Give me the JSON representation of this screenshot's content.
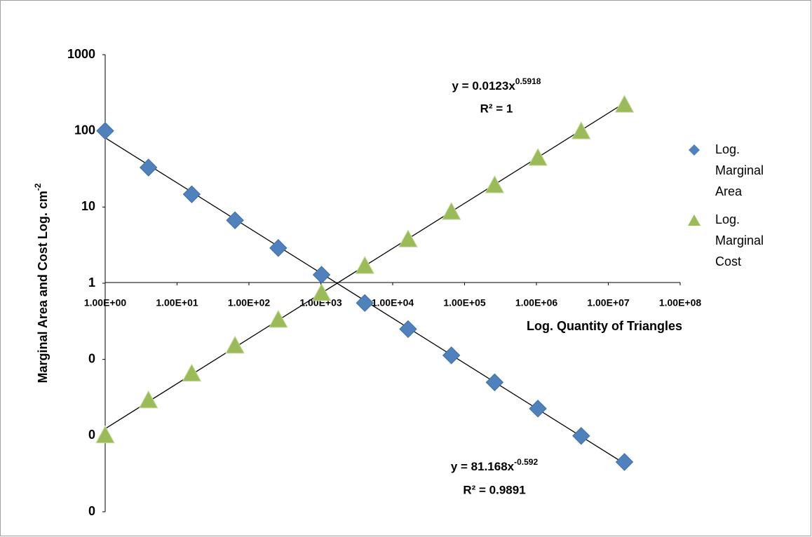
{
  "chart_data": {
    "type": "scatter",
    "xlabel": "Log. Quantity of Triangles",
    "ylabel": "Marginal  Area  and Cost Log. cm",
    "ylabel_sup": "-2",
    "log_x": true,
    "log_y": true,
    "grid": false,
    "legend": "right",
    "xlim": [
      1,
      100000000
    ],
    "xticks": [
      {
        "value": 1,
        "label": "1.00E+00"
      },
      {
        "value": 10,
        "label": "1.00E+01"
      },
      {
        "value": 100,
        "label": "1.00E+02"
      },
      {
        "value": 1000,
        "label": "1.00E+03"
      },
      {
        "value": 10000,
        "label": "1.00E+04"
      },
      {
        "value": 100000,
        "label": "1.00E+05"
      },
      {
        "value": 1000000,
        "label": "1.00E+06"
      },
      {
        "value": 10000000,
        "label": "1.00E+07"
      },
      {
        "value": 100000000,
        "label": "1.00E+08"
      }
    ],
    "ylim": [
      0.001,
      1000
    ],
    "yticks": [
      {
        "value": 0.001,
        "label": "0"
      },
      {
        "value": 0.01,
        "label": "0"
      },
      {
        "value": 0.1,
        "label": "0"
      },
      1,
      10,
      100,
      1000
    ],
    "x": [
      1,
      4,
      16,
      64,
      256,
      1024,
      4096,
      16384,
      65536,
      262144,
      1048576,
      4194304,
      16777216
    ],
    "series": [
      {
        "name": "Log. Marginal Area",
        "color": "#4f81bd",
        "marker": "diamond",
        "values": [
          100,
          33,
          14.7,
          6.7,
          2.9,
          1.29,
          0.55,
          0.25,
          0.113,
          0.05,
          0.0226,
          0.0099,
          0.0045
        ],
        "trendline": {
          "coefficient": 81.168,
          "exponent": -0.592,
          "equation_label": "y = 81.168x",
          "r2_label": "R² = 0.9891"
        }
      },
      {
        "name": "Log. Marginal Cost",
        "color": "#9bbb59",
        "marker": "triangle",
        "values": [
          0.0099,
          0.0285,
          0.064,
          0.149,
          0.325,
          0.73,
          1.66,
          3.7,
          8.5,
          19,
          43.4,
          97,
          217
        ],
        "trendline": {
          "coefficient": 0.0123,
          "exponent": 0.5918,
          "equation_label": "y = 0.0123x",
          "r2_label": "R² = 1"
        }
      }
    ]
  }
}
